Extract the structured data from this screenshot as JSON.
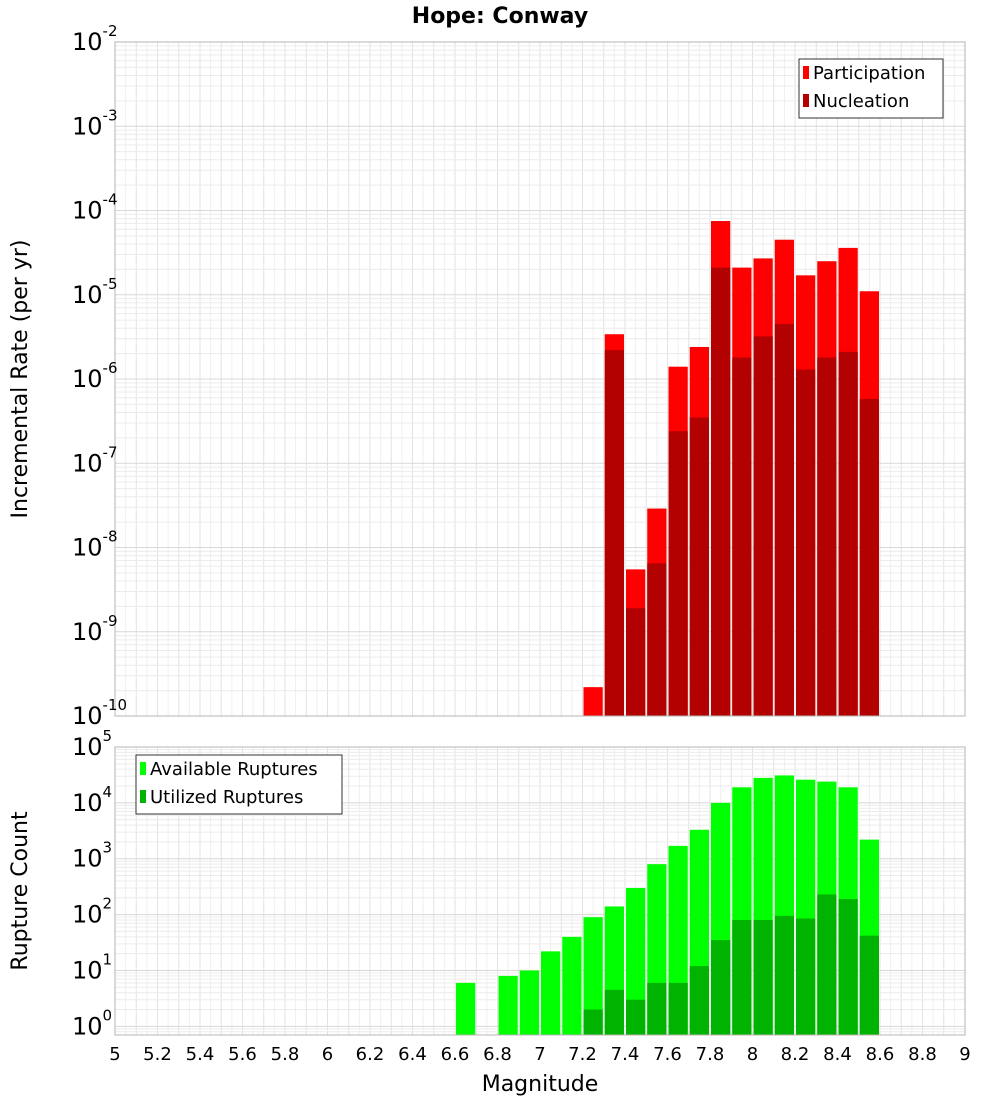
{
  "chart_data": {
    "title": "Hope: Conway",
    "xlabel": "Magnitude",
    "x_ticks": [
      "5",
      "5.2",
      "5.4",
      "5.6",
      "5.8",
      "6",
      "6.2",
      "6.4",
      "6.6",
      "6.8",
      "7",
      "7.2",
      "7.4",
      "7.6",
      "7.8",
      "8",
      "8.2",
      "8.4",
      "8.6",
      "8.8",
      "9"
    ],
    "panels": [
      {
        "type": "bar",
        "scale": "log",
        "ylabel": "Incremental Rate (per yr)",
        "ylim": [
          1e-10,
          0.01
        ],
        "y_ticks": [
          {
            "base": "10",
            "exp": "-2"
          },
          {
            "base": "10",
            "exp": "-3"
          },
          {
            "base": "10",
            "exp": "-4"
          },
          {
            "base": "10",
            "exp": "-5"
          },
          {
            "base": "10",
            "exp": "-6"
          },
          {
            "base": "10",
            "exp": "-7"
          },
          {
            "base": "10",
            "exp": "-8"
          },
          {
            "base": "10",
            "exp": "-9"
          },
          {
            "base": "10",
            "exp": "-10"
          }
        ],
        "legend": {
          "position": "top-right",
          "entries": [
            "Participation",
            "Nucleation"
          ]
        },
        "series": [
          {
            "name": "Participation",
            "color": "#ff0000",
            "x": [
              7.25,
              7.35,
              7.45,
              7.55,
              7.65,
              7.75,
              7.85,
              7.95,
              8.05,
              8.15,
              8.25,
              8.35,
              8.45,
              8.55
            ],
            "values": [
              2.2e-10,
              3.4e-06,
              5.5e-09,
              2.9e-08,
              1.4e-06,
              2.4e-06,
              7.5e-05,
              2.1e-05,
              2.7e-05,
              4.5e-05,
              1.7e-05,
              2.5e-05,
              3.6e-05,
              1.1e-05
            ]
          },
          {
            "name": "Nucleation",
            "color": "#b30000",
            "x": [
              7.35,
              7.45,
              7.55,
              7.65,
              7.75,
              7.85,
              7.95,
              8.05,
              8.15,
              8.25,
              8.35,
              8.45,
              8.55
            ],
            "values": [
              2.2e-06,
              1.9e-09,
              6.5e-09,
              2.4e-07,
              3.5e-07,
              2.1e-05,
              1.8e-06,
              3.2e-06,
              4.5e-06,
              1.3e-06,
              1.8e-06,
              2.1e-06,
              5.8e-07
            ]
          }
        ]
      },
      {
        "type": "bar",
        "scale": "log",
        "ylabel": "Rupture Count",
        "ylim": [
          0.7,
          100000.0
        ],
        "y_ticks": [
          {
            "base": "10",
            "exp": "5"
          },
          {
            "base": "10",
            "exp": "4"
          },
          {
            "base": "10",
            "exp": "3"
          },
          {
            "base": "10",
            "exp": "2"
          },
          {
            "base": "10",
            "exp": "1"
          },
          {
            "base": "10",
            "exp": "0"
          }
        ],
        "legend": {
          "position": "top-left",
          "entries": [
            "Available Ruptures",
            "Utilized Ruptures"
          ]
        },
        "series": [
          {
            "name": "Available Ruptures",
            "color": "#00ff00",
            "x": [
              6.65,
              6.85,
              6.95,
              7.05,
              7.15,
              7.25,
              7.35,
              7.45,
              7.55,
              7.65,
              7.75,
              7.85,
              7.95,
              8.05,
              8.15,
              8.25,
              8.35,
              8.45,
              8.55
            ],
            "values": [
              6,
              8,
              10,
              22,
              40,
              90,
              140,
              300,
              800,
              1700,
              3300,
              10000,
              19000,
              28000,
              31000,
              26000,
              24000,
              19000,
              2200
            ]
          },
          {
            "name": "Utilized Ruptures",
            "color": "#00b300",
            "x": [
              7.25,
              7.35,
              7.45,
              7.55,
              7.65,
              7.75,
              7.85,
              7.95,
              8.05,
              8.15,
              8.25,
              8.35,
              8.45,
              8.55
            ],
            "values": [
              2,
              4.5,
              3,
              6,
              6,
              12,
              35,
              80,
              80,
              95,
              85,
              230,
              190,
              42
            ]
          }
        ]
      }
    ]
  }
}
